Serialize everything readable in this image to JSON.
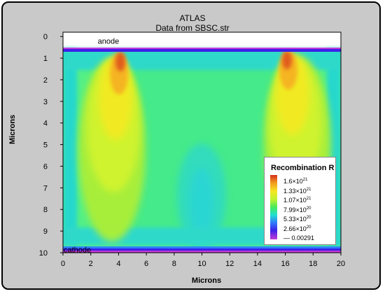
{
  "header": {
    "title": "ATLAS",
    "subtitle": "Data from SBSC.str"
  },
  "chart_data": {
    "type": "heatmap",
    "title": "ATLAS",
    "subtitle": "Data from SBSC.str",
    "xlabel": "Microns",
    "ylabel": "Microns",
    "xlim": [
      0,
      20
    ],
    "ylim": [
      10,
      -0.2
    ],
    "x_ticks": [
      "0",
      "2",
      "4",
      "6",
      "8",
      "10",
      "12",
      "14",
      "16",
      "18",
      "20"
    ],
    "y_ticks": [
      "0",
      "1",
      "2",
      "3",
      "4",
      "5",
      "6",
      "7",
      "8",
      "9",
      "10"
    ],
    "annotations": [
      {
        "text": "anode",
        "x": 2.5,
        "y": 0.2
      },
      {
        "text": "cathode",
        "x": 0.05,
        "y": 9.85
      }
    ],
    "colormap": [
      "#d42f1a",
      "#f1991f",
      "#f6e622",
      "#bff22f",
      "#45ea5a",
      "#22e0cf",
      "#2f7dfb",
      "#3b20e8",
      "#c43ad8"
    ],
    "legend": {
      "title": "Recombination R",
      "position": "lower-right",
      "levels": [
        "1.6×10",
        "1.33×10",
        "1.07×10",
        "7.99×10",
        "5.33×10",
        "2.66×10",
        "0.00291"
      ],
      "exponents": [
        "21",
        "21",
        "21",
        "20",
        "20",
        "20",
        ""
      ]
    },
    "hotspots": [
      {
        "x": 4.0,
        "y": 0.5,
        "level": "1.6×10^21"
      },
      {
        "x": 16.0,
        "y": 0.5,
        "level": "1.6×10^21"
      }
    ]
  }
}
